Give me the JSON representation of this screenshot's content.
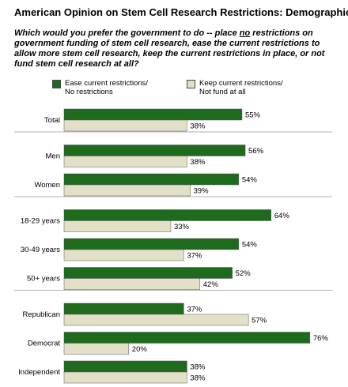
{
  "title": "American Opinion on Stem Cell Research Restrictions: Demographics",
  "question": {
    "before": "Which would you prefer the government to do -- place ",
    "underlined": "no",
    "after": " restrictions on government funding of stem cell research, ease the current restrictions to allow more stem cell research, keep the current restrictions in place, or not fund stem cell research at all?"
  },
  "legend": {
    "ease": "Ease current restrictions/\nNo restrictions",
    "keep": "Keep current restrictions/\nNot fund at all"
  },
  "colors": {
    "ease": "#1e6b1e",
    "keep": "#e3e0c8",
    "divider": "#b0b0b0"
  },
  "chart_data": {
    "type": "bar",
    "orientation": "horizontal",
    "categories": [
      "Total",
      "Men",
      "Women",
      "18-29 years",
      "30-49 years",
      "50+ years",
      "Republican",
      "Democrat",
      "Independent"
    ],
    "groups": [
      [
        "Total"
      ],
      [
        "Men",
        "Women"
      ],
      [
        "18-29 years",
        "30-49 years",
        "50+ years"
      ],
      [
        "Republican",
        "Democrat",
        "Independent"
      ]
    ],
    "series": [
      {
        "name": "Ease current restrictions/ No restrictions",
        "values": [
          55,
          56,
          54,
          64,
          54,
          52,
          37,
          76,
          38
        ]
      },
      {
        "name": "Keep current restrictions/ Not fund at all",
        "values": [
          38,
          38,
          39,
          33,
          37,
          42,
          57,
          20,
          38
        ]
      }
    ],
    "value_suffix": "%",
    "xlim": [
      0,
      100
    ]
  }
}
